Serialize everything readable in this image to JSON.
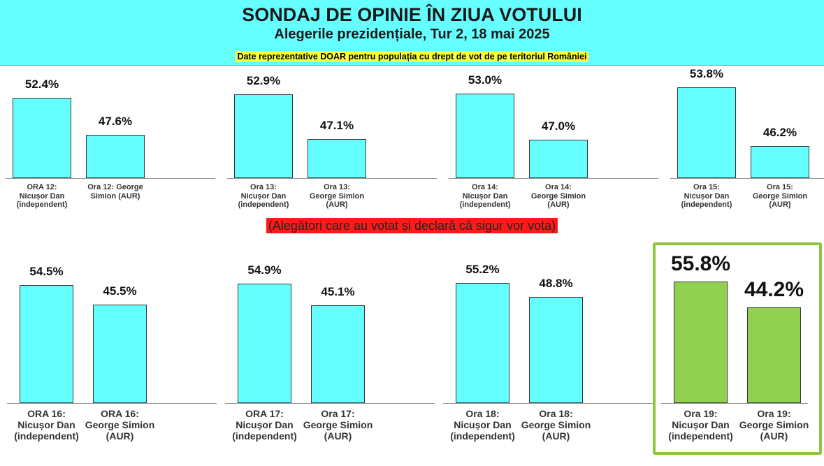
{
  "header": {
    "title": "SONDAJ DE OPINIE ÎN ZIUA VOTULUI",
    "subtitle": "Alegerile prezidențiale, Tur 2, 18 mai 2025",
    "note": "Date reprezentative DOAR pentru populația cu drept de vot de pe teritoriul României"
  },
  "banner": "(Alegători care au votat și declară că sigur vor vota)",
  "chart_data": [
    {
      "type": "bar",
      "categories": [
        "ORA 12:\nNicușor Dan\n(independent)",
        "Ora 12: George\nSimion (AUR)"
      ],
      "values": [
        52.4,
        47.6
      ],
      "value_labels": [
        "52.4%",
        "47.6%"
      ],
      "color": "#66ffff",
      "ylim": [
        42,
        56.5
      ]
    },
    {
      "type": "bar",
      "categories": [
        "Ora 13:\nNicușor Dan\n(independent)",
        "Ora 13:\nGeorge Simion\n(AUR)"
      ],
      "values": [
        52.9,
        47.1
      ],
      "value_labels": [
        "52.9%",
        "47.1%"
      ],
      "color": "#66ffff",
      "ylim": [
        42,
        56.5
      ]
    },
    {
      "type": "bar",
      "categories": [
        "Ora 14:\nNicușor Dan\n(independent)",
        "Ora 14:\nGeorge Simion\n(AUR)"
      ],
      "values": [
        53.0,
        47.0
      ],
      "value_labels": [
        "53.0%",
        "47.0%"
      ],
      "color": "#66ffff",
      "ylim": [
        42,
        56.5
      ]
    },
    {
      "type": "bar",
      "categories": [
        "Ora 15:\nNicușor Dan\n(independent)",
        "Ora 15:\nGeorge Simion\n(AUR)"
      ],
      "values": [
        53.8,
        46.2
      ],
      "value_labels": [
        "53.8%",
        "46.2%"
      ],
      "color": "#66ffff",
      "ylim": [
        42,
        56.5
      ]
    },
    {
      "type": "bar",
      "categories": [
        "ORA 16:\nNicușor Dan\n(independent)",
        "ORA 16:\nGeorge Simion\n(AUR)"
      ],
      "values": [
        54.5,
        45.5
      ],
      "value_labels": [
        "54.5%",
        "45.5%"
      ],
      "color": "#66ffff",
      "ylim": [
        0,
        73
      ]
    },
    {
      "type": "bar",
      "categories": [
        "ORA 17:\nNicușor Dan\n(independent)",
        "Ora 17:\nGeorge Simion\n(AUR)"
      ],
      "values": [
        54.9,
        45.1
      ],
      "value_labels": [
        "54.9%",
        "45.1%"
      ],
      "color": "#66ffff",
      "ylim": [
        0,
        73
      ]
    },
    {
      "type": "bar",
      "categories": [
        "Ora 18:\nNicușor Dan\n(independent)",
        "Ora 18:\nGeorge Simion\n(AUR)"
      ],
      "values": [
        55.2,
        48.8
      ],
      "value_labels": [
        "55.2%",
        "48.8%"
      ],
      "color": "#66ffff",
      "ylim": [
        0,
        73
      ]
    },
    {
      "type": "bar",
      "categories": [
        "Ora 19:\nNicușor Dan\n(independent)",
        "Ora 19:\nGeorge Simion\n(AUR)"
      ],
      "values": [
        55.8,
        44.2
      ],
      "value_labels": [
        "55.8%",
        "44.2%"
      ],
      "color": "#92d050",
      "frame": "#8cc63f",
      "ylim": [
        0,
        73
      ]
    }
  ]
}
